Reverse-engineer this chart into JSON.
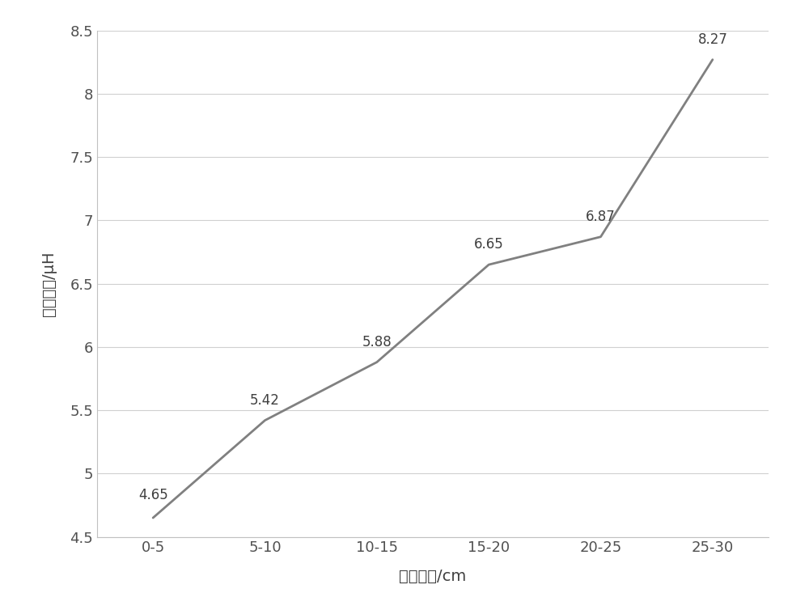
{
  "x_labels": [
    "0-5",
    "5-10",
    "10-15",
    "15-20",
    "20-25",
    "25-30"
  ],
  "y_values": [
    4.65,
    5.42,
    5.88,
    6.65,
    6.87,
    8.27
  ],
  "annotations": [
    "4.65",
    "5.42",
    "5.88",
    "6.65",
    "6.87",
    "8.27"
  ],
  "xlabel": "错位距离/cm",
  "ylabel": "互感变化/μH",
  "ylim": [
    4.5,
    8.5
  ],
  "yticks": [
    4.5,
    5.0,
    5.5,
    6.0,
    6.5,
    7.0,
    7.5,
    8.0,
    8.5
  ],
  "line_color": "#808080",
  "line_width": 2.0,
  "background_color": "#ffffff",
  "grid_color": "#d0d0d0",
  "xlabel_fontsize": 14,
  "ylabel_fontsize": 14,
  "tick_fontsize": 13,
  "annotation_fontsize": 12,
  "annotation_offsets_x": [
    0.0,
    0.0,
    0.0,
    0.0,
    0.0,
    0.0
  ],
  "annotation_offsets_y": [
    0.12,
    0.1,
    0.1,
    0.1,
    0.1,
    0.1
  ]
}
